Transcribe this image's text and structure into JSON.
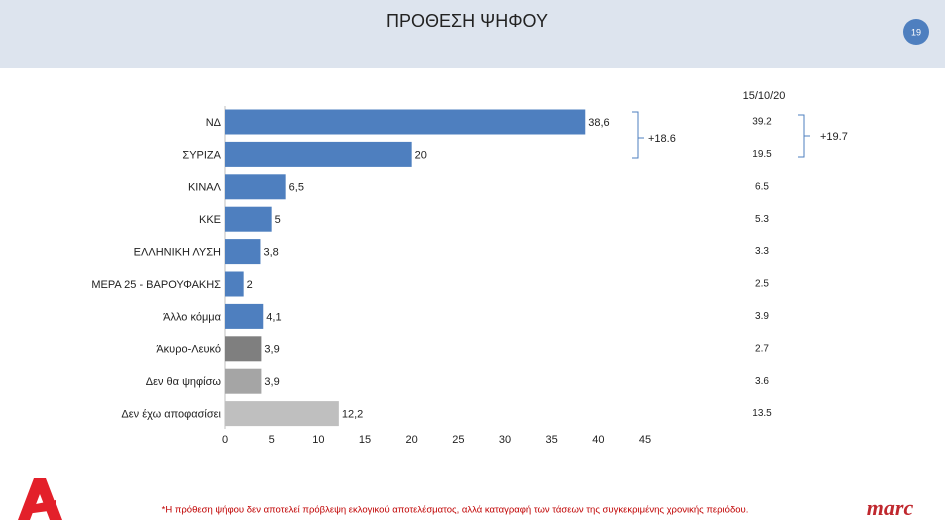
{
  "header": {
    "title": "ΠΡΟΘΕΣΗ ΨΗΦΟΥ",
    "page_number": "19"
  },
  "chart_data": {
    "type": "bar",
    "orientation": "horizontal",
    "categories": [
      "ΝΔ",
      "ΣΥΡΙΖΑ",
      "ΚΙΝΑΛ",
      "ΚΚΕ",
      "ΕΛΛΗΝΙΚΗ ΛΥΣΗ",
      "ΜΕΡΑ 25 - ΒΑΡΟΥΦΑΚΗΣ",
      "Άλλο κόμμα",
      "Άκυρο-Λευκό",
      "Δεν θα ψηφίσω",
      "Δεν έχω αποφασίσει"
    ],
    "values": [
      38.6,
      20,
      6.5,
      5,
      3.8,
      2,
      4.1,
      3.9,
      3.9,
      12.2
    ],
    "value_labels": [
      "38,6",
      "20",
      "6,5",
      "5",
      "3,8",
      "2",
      "4,1",
      "3,9",
      "3,9",
      "12,2"
    ],
    "colors": [
      "#4e7fbf",
      "#4e7fbf",
      "#4e7fbf",
      "#4e7fbf",
      "#4e7fbf",
      "#4e7fbf",
      "#4e7fbf",
      "#7f7f7f",
      "#a5a5a5",
      "#bfbfbf"
    ],
    "xlim": [
      0,
      45
    ],
    "xticks": [
      0,
      5,
      10,
      15,
      20,
      25,
      30,
      35,
      40,
      45
    ],
    "comparison_date": "15/10/20",
    "comparison_values": [
      39.2,
      19.5,
      6.5,
      5.3,
      3.3,
      2.5,
      3.9,
      2.7,
      3.6,
      13.5
    ],
    "annotations": [
      "+18.6",
      "+19.7"
    ]
  },
  "footnote": "*Η πρόθεση ψήφου δεν αποτελεί πρόβλεψη εκλογικού αποτελέσματος, αλλά καταγραφή των τάσεων της συγκεκριμένης χρονικής περιόδου.",
  "logo": "marc"
}
